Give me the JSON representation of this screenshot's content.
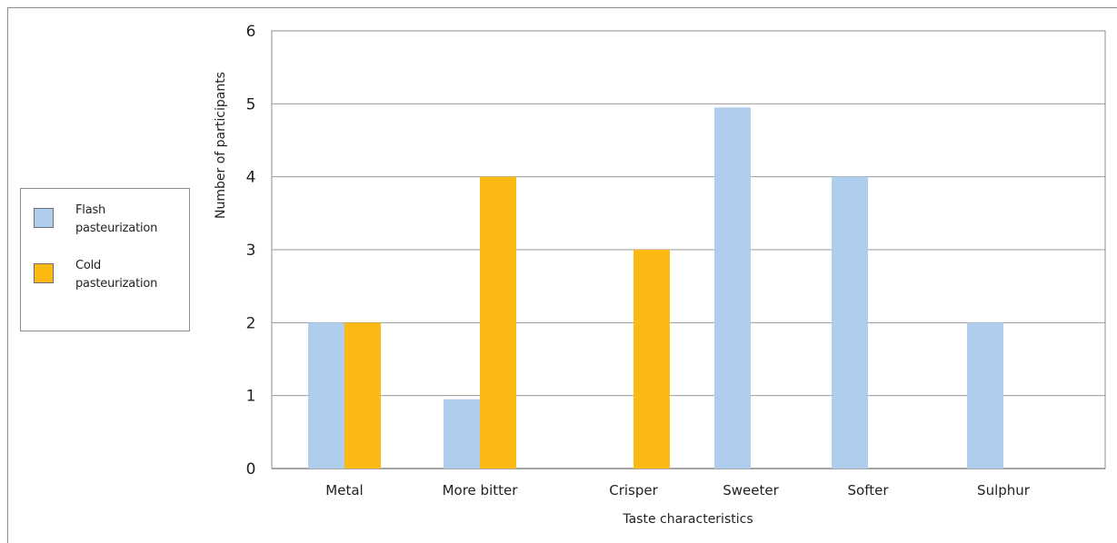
{
  "chart_data": {
    "type": "bar",
    "title": "",
    "xlabel": "Taste characteristics",
    "ylabel": "Number of participants",
    "ylim": [
      0,
      6
    ],
    "yticks": [
      0,
      1,
      2,
      3,
      4,
      5,
      6
    ],
    "grid": true,
    "legend_position": "left",
    "categories": [
      "Metal",
      "More bitter",
      "Crisper",
      "Sweeter",
      "Softer",
      "Sulphur"
    ],
    "series": [
      {
        "name": "Flash pasteurization",
        "name_lines": [
          "Flash",
          "pasteurization"
        ],
        "color": "#afcdec",
        "values": [
          2,
          0.95,
          0,
          4.95,
          4,
          2
        ]
      },
      {
        "name": "Cold pasteurization",
        "name_lines": [
          "Cold",
          "pasteurization"
        ],
        "color": "#fbb913",
        "values": [
          2,
          4,
          3,
          0,
          0,
          0
        ]
      }
    ]
  }
}
